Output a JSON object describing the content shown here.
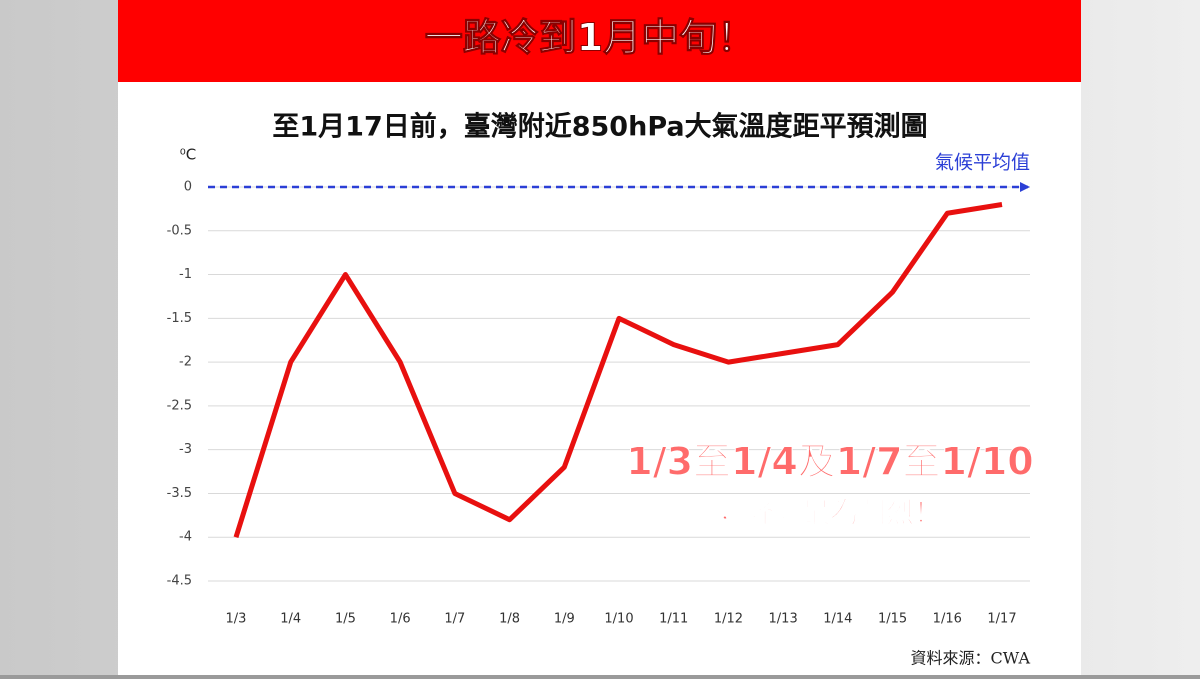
{
  "header": {
    "title": "一路冷到1月中旬！"
  },
  "chart_data": {
    "type": "line",
    "title": "至1月17日前，臺灣附近850hPa大氣溫度距平預測圖",
    "y_label": "⁰C",
    "categories": [
      "1/3",
      "1/4",
      "1/5",
      "1/6",
      "1/7",
      "1/8",
      "1/9",
      "1/10",
      "1/11",
      "1/12",
      "1/13",
      "1/14",
      "1/15",
      "1/16",
      "1/17"
    ],
    "series": [
      {
        "color": "#e8100f",
        "values": [
          -4,
          -2,
          -1,
          -2,
          -3.5,
          -3.8,
          -3.2,
          -1.5,
          -1.8,
          -2,
          -1.9,
          -1.8,
          -1.2,
          -0.3,
          -0.2
        ]
      }
    ],
    "ylim": [
      -4.5,
      0
    ],
    "yticks": [
      0,
      -0.5,
      -1,
      -1.5,
      -2,
      -2.5,
      -3,
      -3.5,
      -4,
      -4.5
    ],
    "grid": true,
    "reference_line": {
      "value": 0,
      "label": "氣候平均值",
      "color": "#2b3fd6"
    },
    "annotations": [
      "1/3至1/4及1/7至1/10",
      "，降幅最為劇烈！"
    ]
  },
  "source": "資料來源：CWA"
}
